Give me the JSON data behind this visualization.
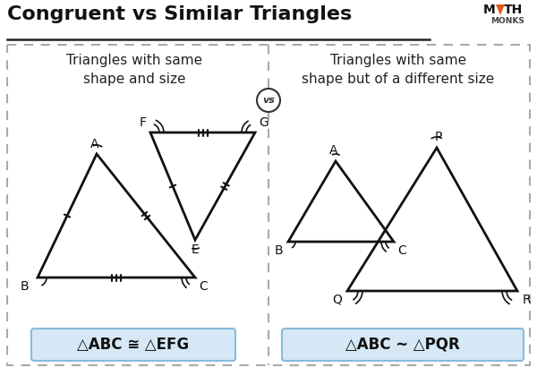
{
  "title": "Congruent vs Similar Triangles",
  "bg_color": "#ffffff",
  "box_bg": "#ffffff",
  "left_header": "Triangles with same\nshape and size",
  "right_header": "Triangles with same\nshape but of a different size",
  "left_formula": "△ABC ≅ △EFG",
  "right_formula": "△ABC ~ △PQR",
  "formula_bg": "#d6e8f5",
  "title_color": "#111111",
  "logo_triangle_color": "#e05a1a",
  "line_color": "#111111",
  "border_color": "#aaaaaa",
  "text_color": "#222222"
}
